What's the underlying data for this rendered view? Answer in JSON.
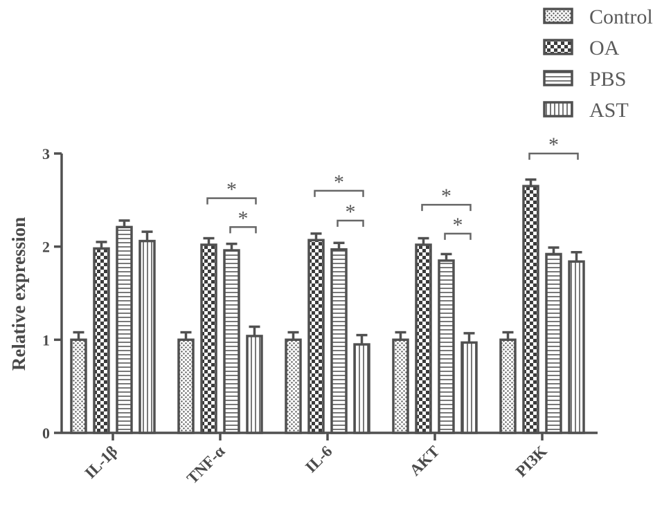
{
  "chart_data": {
    "type": "bar",
    "ylabel": "Relative expression",
    "xlabel": "",
    "ylim": [
      0,
      3
    ],
    "yticks": [
      0,
      1,
      2,
      3
    ],
    "categories": [
      "IL-1β",
      "TNF-α",
      "IL-6",
      "AKT",
      "PI3K"
    ],
    "legend_position": "top-right",
    "series": [
      {
        "name": "Control",
        "pattern": "dots",
        "values": [
          1.0,
          1.0,
          1.0,
          1.0,
          1.0
        ],
        "errors": [
          0.08,
          0.08,
          0.08,
          0.08,
          0.08
        ]
      },
      {
        "name": "OA",
        "pattern": "checker",
        "values": [
          1.98,
          2.02,
          2.07,
          2.02,
          2.65
        ],
        "errors": [
          0.07,
          0.07,
          0.07,
          0.07,
          0.07
        ]
      },
      {
        "name": "PBS",
        "pattern": "horizontal-lines",
        "values": [
          2.21,
          1.96,
          1.97,
          1.85,
          1.92
        ],
        "errors": [
          0.07,
          0.07,
          0.07,
          0.07,
          0.07
        ]
      },
      {
        "name": "AST",
        "pattern": "vertical-lines",
        "values": [
          2.06,
          1.04,
          0.95,
          0.97,
          1.84
        ],
        "errors": [
          0.1,
          0.1,
          0.1,
          0.1,
          0.1
        ]
      }
    ],
    "significance": [
      {
        "category": 1,
        "from": 1,
        "to": 3,
        "level": 2.52,
        "label": "*"
      },
      {
        "category": 1,
        "from": 2,
        "to": 3,
        "level": 2.21,
        "label": "*"
      },
      {
        "category": 2,
        "from": 1,
        "to": 3,
        "level": 2.6,
        "label": "*"
      },
      {
        "category": 2,
        "from": 2,
        "to": 3,
        "level": 2.28,
        "label": "*"
      },
      {
        "category": 3,
        "from": 1,
        "to": 3,
        "level": 2.45,
        "label": "*"
      },
      {
        "category": 3,
        "from": 2,
        "to": 3,
        "level": 2.14,
        "label": "*"
      },
      {
        "category": 4,
        "from": 1,
        "to": 3,
        "level": 3.0,
        "label": "*"
      }
    ],
    "grid": false
  }
}
